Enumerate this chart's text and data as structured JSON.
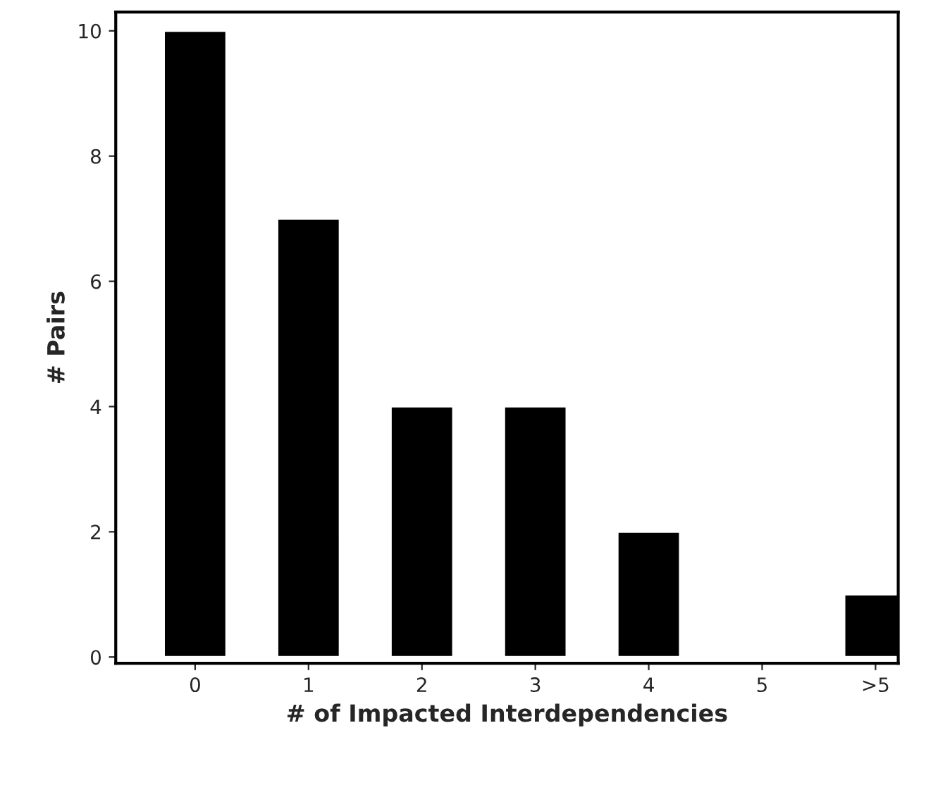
{
  "chart_data": {
    "type": "bar",
    "xlabel": "# of Impacted Interdependencies",
    "ylabel": "# Pairs",
    "categories": [
      "0",
      "1",
      "2",
      "3",
      "4",
      "5",
      ">5"
    ],
    "values": [
      10,
      7,
      4,
      4,
      2,
      null,
      1
    ],
    "color": "#000000",
    "ylim": [
      -0.1,
      10.3
    ],
    "yticks": [
      0,
      2,
      4,
      6,
      8,
      10
    ],
    "grid": false,
    "legend": false
  }
}
